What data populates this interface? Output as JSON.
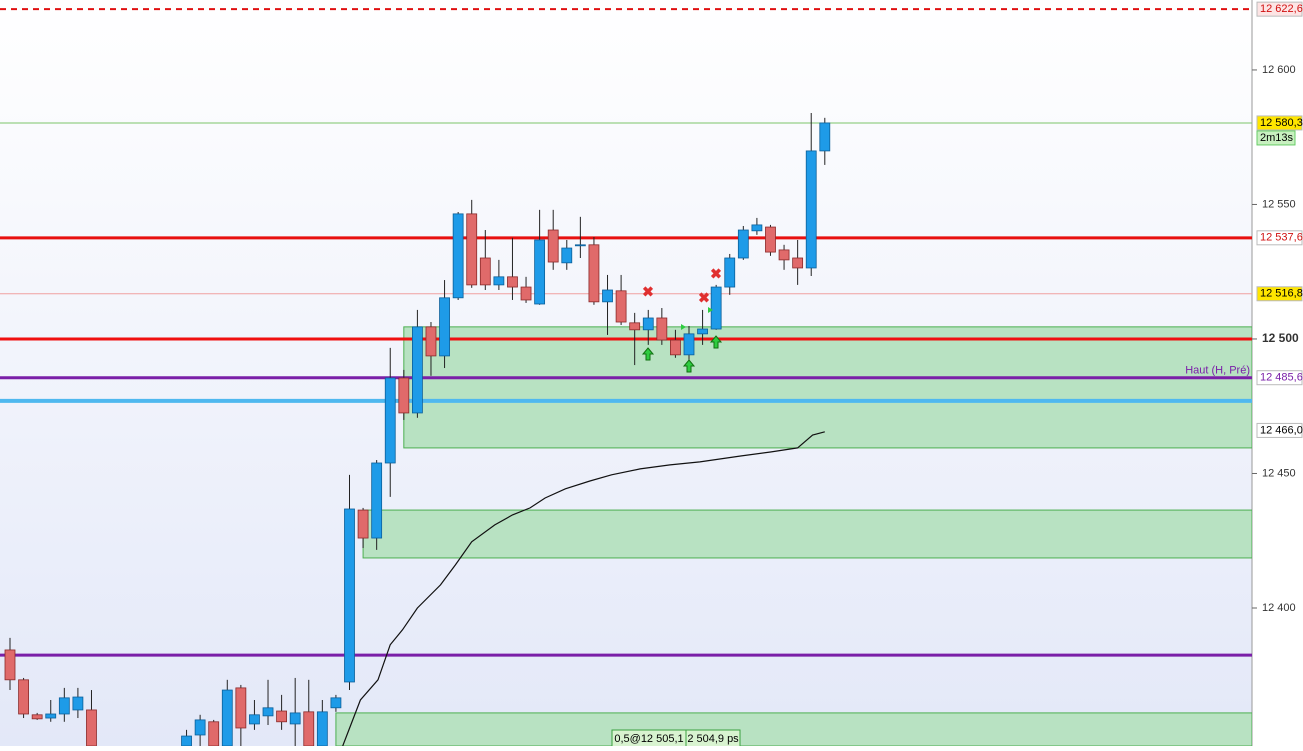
{
  "chart_data": {
    "type": "candlestick",
    "ylim": [
      12348.7,
      12626.0
    ],
    "yticks": [
      {
        "value": 12400,
        "label": "12 400"
      },
      {
        "value": 12450,
        "label": "12 450"
      },
      {
        "value": 12500,
        "label": "12 500"
      },
      {
        "value": 12550,
        "label": "12 550"
      },
      {
        "value": 12600,
        "label": "12 600"
      }
    ],
    "up_color": "#1e9be8",
    "down_color": "#e06a6a",
    "open": [
      12384.4,
      12373.3,
      12360.3,
      12359.1,
      12360.6,
      12362.1,
      12362.1,
      null,
      null,
      null,
      null,
      null,
      null,
      12348.7,
      12352.8,
      12357.7,
      12348.7,
      12370.3,
      12356.9,
      12359.9,
      12361.7,
      12356.9,
      12361.4,
      12348.7,
      12362.9,
      12372.5,
      12436.4,
      12426.0,
      12453.9,
      12485.5,
      12472.5,
      12504.5,
      12493.7,
      12515.3,
      12546.5,
      12530.1,
      12520.1,
      12523.1,
      12519.3,
      12513.0,
      12540.5,
      12528.3,
      12535.0,
      12535.0,
      12513.8,
      12517.9,
      12506.0,
      12503.4,
      12507.8,
      12499.6,
      12494.1,
      12501.9,
      12503.7,
      12519.3,
      12530.1,
      12540.2,
      12541.6,
      12533.1,
      12530.1,
      12526.4,
      12569.9
    ],
    "high": [
      12388.9,
      12374.0,
      12361.0,
      12365.8,
      12370.3,
      12370.3,
      12369.5,
      null,
      null,
      null,
      null,
      null,
      null,
      12354.7,
      12360.3,
      12358.4,
      12373.3,
      12371.4,
      12365.8,
      12373.3,
      12367.7,
      12374.0,
      12373.3,
      12365.8,
      12367.7,
      12449.5,
      12437.2,
      12455.0,
      12496.7,
      12488.5,
      12510.8,
      12506.3,
      12521.9,
      12547.2,
      12551.7,
      12540.5,
      12529.4,
      12537.6,
      12523.1,
      12548.0,
      12548.0,
      12536.8,
      12545.4,
      12537.9,
      12523.8,
      12523.8,
      12509.7,
      12510.8,
      12511.5,
      12503.4,
      12504.8,
      12510.8,
      12520.1,
      12531.6,
      12542.0,
      12545.0,
      12542.4,
      12535.0,
      12536.8,
      12584.0,
      12582.2
    ],
    "low": [
      12369.5,
      12359.1,
      12358.4,
      12357.7,
      12357.7,
      12359.1,
      12348.7,
      null,
      null,
      null,
      null,
      null,
      null,
      12348.7,
      12348.7,
      12348.7,
      12348.7,
      12348.7,
      12354.7,
      12356.5,
      12354.7,
      12348.7,
      12348.7,
      12348.7,
      12361.4,
      12369.5,
      12422.3,
      12421.6,
      12441.3,
      12469.9,
      12470.7,
      12486.3,
      12489.2,
      12514.5,
      12519.0,
      12518.2,
      12518.2,
      12514.5,
      12513.4,
      12512.7,
      12525.7,
      12525.7,
      12530.1,
      12512.7,
      12501.5,
      12505.2,
      12490.3,
      12497.8,
      12497.8,
      12493.0,
      12492.2,
      12497.8,
      12503.4,
      12516.4,
      12529.4,
      12538.7,
      12530.9,
      12525.7,
      12520.1,
      12523.4,
      12564.7
    ],
    "close": [
      12373.3,
      12360.6,
      12358.8,
      12360.6,
      12366.6,
      12366.9,
      12348.7,
      null,
      null,
      null,
      null,
      null,
      null,
      12352.4,
      12358.4,
      12348.7,
      12369.5,
      12355.4,
      12360.3,
      12362.9,
      12357.7,
      12361.0,
      12348.7,
      12361.4,
      12366.6,
      12436.8,
      12426.0,
      12453.9,
      12485.5,
      12472.5,
      12504.5,
      12493.7,
      12515.3,
      12546.5,
      12520.1,
      12520.1,
      12523.1,
      12519.3,
      12514.5,
      12536.8,
      12528.6,
      12533.8,
      12535.0,
      12513.8,
      12518.2,
      12506.3,
      12503.4,
      12507.8,
      12499.6,
      12494.1,
      12501.9,
      12503.7,
      12519.3,
      12530.1,
      12540.5,
      12542.4,
      12532.3,
      12529.4,
      12526.4,
      12569.9,
      12580.3
    ],
    "zones": [
      {
        "high": 12504.5,
        "low": 12459.5,
        "start": 29
      },
      {
        "high": 12436.4,
        "low": 12418.6,
        "start": 26
      },
      {
        "high": 12361.0,
        "low": 12348.7,
        "start": 24
      }
    ],
    "line": {
      "color": "#111111",
      "x": [
        24.5,
        25.8,
        27.1,
        28.0,
        28.9,
        30.0,
        31.7,
        32.8,
        34.0,
        35.7,
        37.0,
        38.3,
        39.4,
        40.9,
        42.7,
        44.3,
        46.4,
        48.6,
        50.8,
        53.8,
        56.0,
        58.0,
        59.1,
        60.0
      ],
      "values": [
        12348.7,
        12365.8,
        12373.3,
        12386.3,
        12391.9,
        12400.0,
        12408.6,
        12416.0,
        12424.6,
        12430.9,
        12434.6,
        12437.2,
        12440.9,
        12444.3,
        12447.2,
        12449.5,
        12451.7,
        12453.2,
        12454.3,
        12456.5,
        12458.0,
        12459.5,
        12464.3,
        12465.5
      ]
    },
    "levels": [
      {
        "value": 12622.6,
        "label": "12 622,6",
        "color": "#e01010",
        "width": 2,
        "dashed": true
      },
      {
        "value": 12580.3,
        "label": "12 580,3",
        "color": "#7cc46a",
        "width": 1,
        "dashed": false
      },
      {
        "value": 12537.6,
        "label": "12 537,6",
        "color": "#e81010",
        "width": 3,
        "dashed": false
      },
      {
        "value": 12516.8,
        "label": "12 516,8",
        "color": "#f0a0a0",
        "width": 1,
        "dashed": false
      },
      {
        "value": 12500,
        "color": "#f01010",
        "width": 3,
        "dashed": false
      },
      {
        "value": 12485.6,
        "label": "12 485,6",
        "note": "Haut (H, Pré)",
        "color": "#7a1fa8",
        "width": 3,
        "dashed": false
      },
      {
        "value": 12477,
        "color": "#4fb8ef",
        "width": 4,
        "dashed": false
      },
      {
        "value": 12466.0,
        "label": "12 466,0",
        "color": "none",
        "width": 0,
        "dashed": false
      },
      {
        "value": 12382.5,
        "color": "#7a1fa8",
        "width": 3,
        "dashed": false
      }
    ],
    "timer": "2m13s",
    "footer_labels": [
      "0,5@12 505,1",
      "2 504,9 ps"
    ]
  }
}
